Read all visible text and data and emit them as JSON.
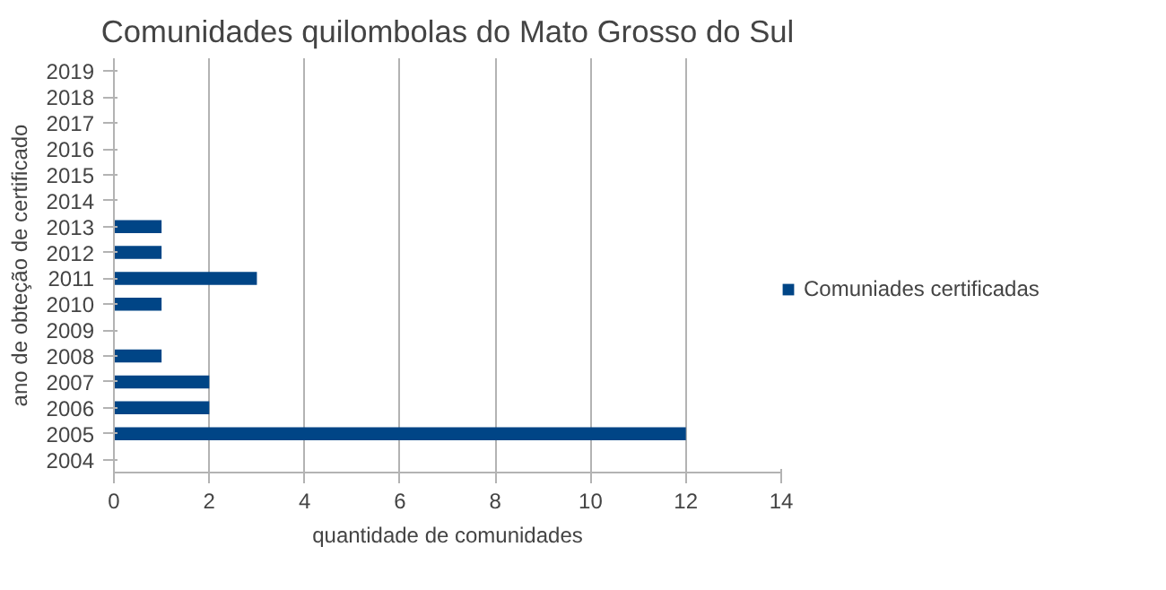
{
  "chart_data": {
    "type": "bar",
    "orientation": "horizontal",
    "title": "Comunidades quilombolas do Mato Grosso do Sul",
    "xlabel": "quantidade de comunidades",
    "ylabel": "ano de obteção de certificado",
    "categories": [
      "2019",
      "2018",
      "2017",
      "2016",
      "2015",
      "2014",
      "2013",
      "2012",
      "2011",
      "2010",
      "2009",
      "2008",
      "2007",
      "2006",
      "2005",
      "2004"
    ],
    "series": [
      {
        "name": "Comuniades certificadas",
        "color": "#004586",
        "values": [
          null,
          null,
          null,
          null,
          null,
          null,
          1,
          1,
          3,
          1,
          null,
          1,
          2,
          2,
          12,
          null
        ]
      }
    ],
    "xlim": [
      0,
      14
    ],
    "xticks": [
      0,
      2,
      4,
      6,
      8,
      10,
      12,
      14
    ],
    "grid": "x",
    "legend": "right"
  }
}
